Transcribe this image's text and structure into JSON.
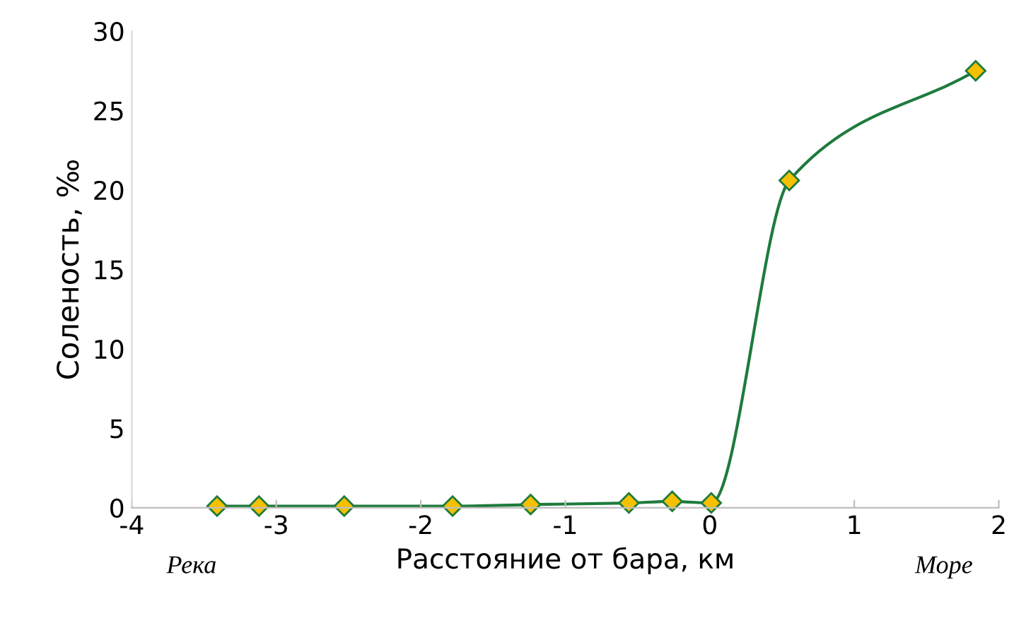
{
  "chart_data": {
    "type": "line",
    "xlabel": "Расстояние от бара, км",
    "ylabel": "Соленость, ‰",
    "x": [
      -3.41,
      -3.12,
      -2.53,
      -1.78,
      -1.24,
      -0.56,
      -0.26,
      0.01,
      0.55,
      1.84
    ],
    "series": [
      {
        "color": "#1e7b3c",
        "values": [
          0.1,
          0.1,
          0.1,
          0.1,
          0.2,
          0.3,
          0.4,
          0.3,
          20.6,
          27.5
        ]
      }
    ],
    "marker": "diamond",
    "line_style": "solid",
    "xlim": [
      -4,
      2
    ],
    "xticks": [
      -4,
      -3,
      -2,
      -1,
      0,
      1,
      2
    ],
    "ylim": [
      0,
      30
    ],
    "yticks": [
      0,
      5,
      10,
      15,
      20,
      25,
      30
    ],
    "grid": false,
    "legend": false,
    "annotations": [
      "Река",
      "Море"
    ]
  }
}
